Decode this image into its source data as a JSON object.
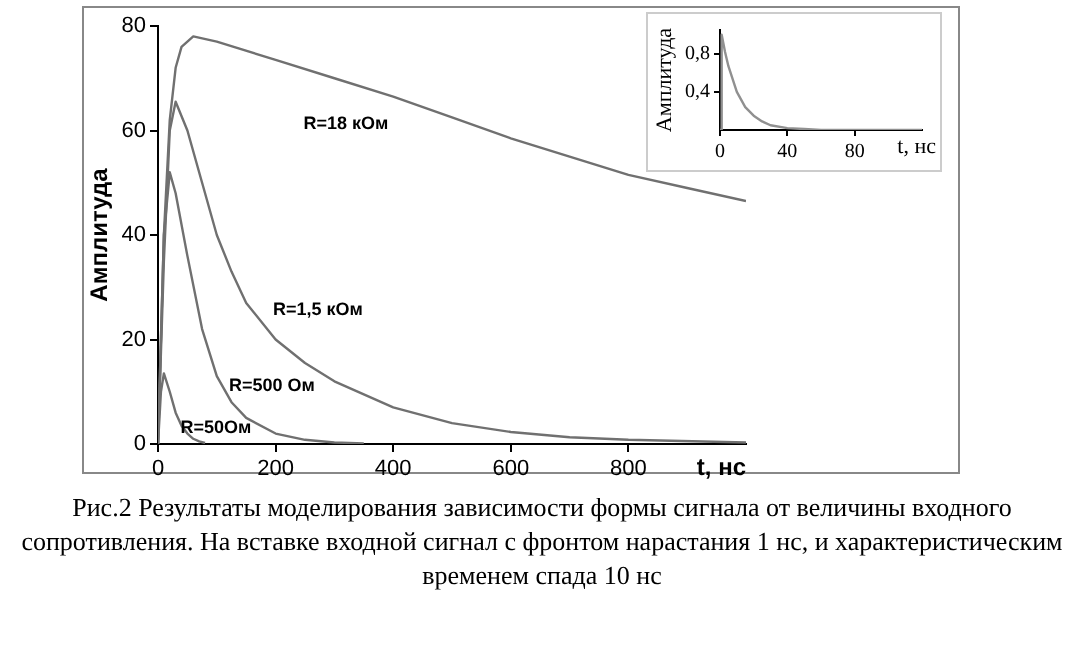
{
  "chart_data": [
    {
      "type": "line",
      "xlabel": "t, нс",
      "ylabel": "Амплитуда",
      "xlim": [
        0,
        1000
      ],
      "xticks": [
        0,
        200,
        400,
        600,
        800
      ],
      "ylim": [
        0,
        80
      ],
      "yticks": [
        0,
        20,
        40,
        60,
        80
      ],
      "grid": false,
      "legend": false,
      "marker": "none",
      "line_style": "solid",
      "series": [
        {
          "name": "R=18 кОм",
          "color": "#707070",
          "x": [
            0,
            10,
            20,
            30,
            40,
            60,
            100,
            200,
            300,
            400,
            500,
            600,
            700,
            800,
            900,
            1000
          ],
          "values": [
            0,
            40,
            62,
            72,
            76,
            78,
            77,
            73.5,
            70,
            66.5,
            62.5,
            58.5,
            55,
            51.5,
            49,
            46.5
          ]
        },
        {
          "name": "R=1,5 кОм",
          "color": "#707070",
          "x": [
            0,
            10,
            20,
            30,
            50,
            75,
            100,
            125,
            150,
            200,
            250,
            300,
            400,
            500,
            600,
            700,
            800,
            1000
          ],
          "values": [
            0,
            35,
            60,
            65.5,
            60,
            50,
            40,
            33,
            27,
            20,
            15.5,
            12,
            7,
            4,
            2.3,
            1.3,
            0.8,
            0.3
          ]
        },
        {
          "name": "R=500 Ом",
          "color": "#707070",
          "x": [
            0,
            10,
            20,
            30,
            50,
            75,
            100,
            125,
            150,
            200,
            250,
            300,
            350
          ],
          "values": [
            0,
            40,
            52,
            48,
            36,
            22,
            13,
            8,
            5,
            2,
            0.8,
            0.3,
            0.1
          ]
        },
        {
          "name": "R=50Ом",
          "color": "#707070",
          "x": [
            0,
            5,
            10,
            20,
            30,
            40,
            50,
            60,
            70,
            80
          ],
          "values": [
            0,
            10,
            13.5,
            10,
            6,
            3.5,
            2,
            1,
            0.5,
            0.2
          ]
        }
      ],
      "annotations": [
        "Рис.2 Результаты моделирования зависимости формы сигнала от величины входного сопротивления. На вставке входной сигнал с фронтом нарастания 1 нс, и характеристическим временем спада 10 нс"
      ]
    },
    {
      "type": "line",
      "xlabel": "t, нс",
      "ylabel": "Амплитуда",
      "xlim": [
        0,
        120
      ],
      "xticks": [
        0,
        40,
        80
      ],
      "ylim": [
        0,
        1.05
      ],
      "yticks": [
        {
          "value": 0.4,
          "label": "0,4"
        },
        {
          "value": 0.8,
          "label": "0,8"
        }
      ],
      "grid": false,
      "legend": false,
      "marker": "none",
      "line_style": "solid",
      "series": [
        {
          "color": "#909090",
          "x": [
            0,
            1,
            3,
            5,
            10,
            15,
            20,
            25,
            30,
            40,
            50,
            60,
            120
          ],
          "values": [
            0,
            1,
            0.82,
            0.67,
            0.4,
            0.24,
            0.15,
            0.09,
            0.05,
            0.02,
            0.01,
            0,
            0
          ]
        }
      ]
    }
  ]
}
